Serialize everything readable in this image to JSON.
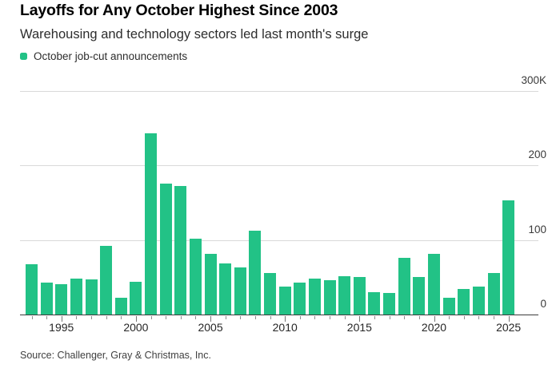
{
  "header": {
    "title": "Layoffs for Any October Highest Since 2003",
    "subtitle": "Warehousing and technology sectors led last month's surge"
  },
  "legend": {
    "label": "October job-cut announcements",
    "swatch_color": "#22c286"
  },
  "chart_data": {
    "type": "bar",
    "title": "Layoffs for Any October Highest Since 2003",
    "subtitle": "Warehousing and technology sectors led last month's surge",
    "series_name": "October job-cut announcements",
    "unit": "thousands of announced job cuts",
    "categories": [
      1993,
      1994,
      1995,
      1996,
      1997,
      1998,
      1999,
      2000,
      2001,
      2002,
      2003,
      2004,
      2005,
      2006,
      2007,
      2008,
      2009,
      2010,
      2011,
      2012,
      2013,
      2014,
      2015,
      2016,
      2017,
      2018,
      2019,
      2020,
      2021,
      2022,
      2023,
      2024,
      2025
    ],
    "values": [
      67,
      43,
      41,
      48,
      47,
      92,
      22,
      44,
      243,
      176,
      172,
      102,
      81,
      69,
      63,
      113,
      56,
      38,
      43,
      48,
      46,
      51,
      50,
      30,
      29,
      76,
      50,
      81,
      22,
      34,
      37,
      56,
      153
    ],
    "ylim": [
      0,
      300
    ],
    "yticks": [
      {
        "label": "300K",
        "value": 300
      },
      {
        "label": "200",
        "value": 200
      },
      {
        "label": "100",
        "value": 100
      },
      {
        "label": "0",
        "value": 0
      }
    ],
    "xtick_labels": [
      "1995",
      "2000",
      "2005",
      "2010",
      "2015",
      "2020",
      "2025"
    ],
    "bar_color": "#22c286",
    "grid": "horizontal",
    "legend_position": "top-left",
    "ylabel_side": "right"
  },
  "source": {
    "text": "Source: Challenger, Gray & Christmas, Inc."
  }
}
